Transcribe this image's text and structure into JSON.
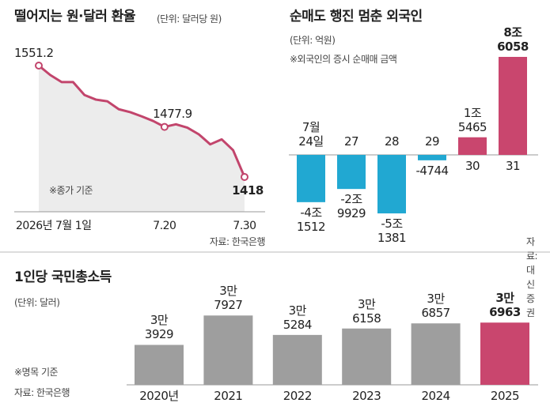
{
  "chart_data": [
    {
      "type": "line",
      "title": "떨어지는 원·달러 환율",
      "subtitle": "(단위: 달러당 원)",
      "annotation": "※종가 기준",
      "source": "자료: 한국은행",
      "categories": [
        "2026년 7월 1일",
        null,
        null,
        null,
        null,
        null,
        null,
        null,
        null,
        null,
        null,
        "7.20",
        null,
        null,
        null,
        null,
        null,
        null,
        "7.30"
      ],
      "values": [
        1551.2,
        1540,
        1531.5,
        1531.5,
        1516,
        1510.5,
        1508.5,
        1499,
        1495.5,
        1490.5,
        1485,
        1477.9,
        1481,
        1477,
        1469,
        1457,
        1463,
        1450,
        1418
      ],
      "color": "#c2456c",
      "ylim": [
        1400,
        1560
      ]
    },
    {
      "type": "bar",
      "title": "순매도 행진 멈춘 외국인",
      "subtitle": "(단위: 억원)",
      "annotation": "※외국인의 증시 순매매 금액",
      "source": "자료: 대신증권",
      "categories": [
        "7월\n24일",
        "27",
        "28",
        "29",
        "30",
        "31"
      ],
      "values": [
        -41512,
        -29929,
        -51381,
        -4744,
        15465,
        86058
      ],
      "value_labels": [
        "-4조\n1512",
        "-2조\n9929",
        "-5조\n1381",
        "-4744",
        "1조\n5465",
        "8조\n6058"
      ],
      "colors": [
        "#21a8d2",
        "#21a8d2",
        "#21a8d2",
        "#21a8d2",
        "#c9466e",
        "#c9466e"
      ],
      "ylim": [
        -60000,
        100000
      ]
    },
    {
      "type": "bar",
      "title": "1인당 국민총소득",
      "subtitle": "(단위: 달러)",
      "annotation": "※명목 기준",
      "source": "자료: 한국은행",
      "categories": [
        "2020년",
        "2021",
        "2022",
        "2023",
        "2024",
        "2025"
      ],
      "values": [
        33929,
        37927,
        35284,
        36158,
        36857,
        36963
      ],
      "value_labels": [
        "3만\n3929",
        "3만\n7927",
        "3만\n5284",
        "3만\n6158",
        "3만\n6857",
        "3만\n6963"
      ],
      "colors": [
        "#9e9e9e",
        "#9e9e9e",
        "#9e9e9e",
        "#9e9e9e",
        "#9e9e9e",
        "#c9466e"
      ],
      "ylim": [
        28500,
        40000
      ]
    }
  ]
}
